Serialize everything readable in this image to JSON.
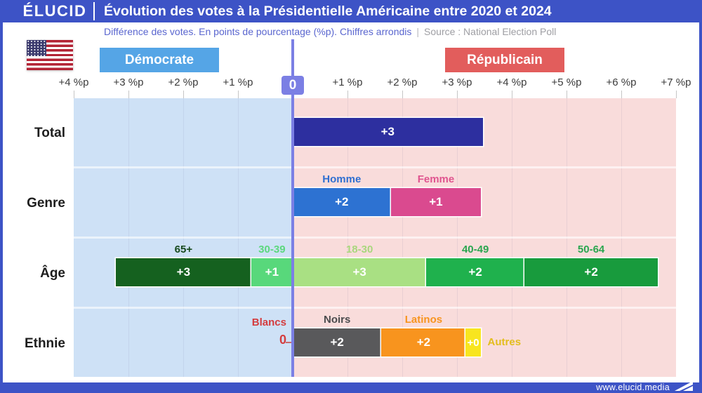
{
  "header": {
    "logo": "ÉLUCID",
    "title": "Évolution des votes à la Présidentielle Américaine entre 2020 et 2024"
  },
  "subtitle": {
    "text": "Différence des votes. En points de pourcentage (%p). Chiffres arrondis",
    "separator": "|",
    "source": "Source : National Election Poll"
  },
  "legend": {
    "democrat": "Démocrate",
    "republican": "Républicain"
  },
  "axis": {
    "zero": "0",
    "left_ticks": [
      "+4 %p",
      "+3 %p",
      "+2 %p",
      "+1 %p"
    ],
    "right_ticks": [
      "+1 %p",
      "+2 %p",
      "+3 %p",
      "+4 %p",
      "+5 %p",
      "+6 %p",
      "+7 %p"
    ]
  },
  "footer": {
    "url": "www.elucid.media"
  },
  "colors": {
    "frame_blue": "#3d53c6",
    "democrat_button": "#55a5e6",
    "republican_button": "#e25d5c",
    "democrat_bg": "#cee1f6",
    "republican_bg": "#f9dcdb",
    "zero_purple": "#7b7fe4",
    "blancs_dash": "#c8696c"
  },
  "chart_data": {
    "type": "bar",
    "orientation": "diverging-horizontal",
    "title": "Évolution des votes à la Présidentielle Américaine entre 2020 et 2024",
    "subtitle": "Différence des votes. En points de pourcentage (%p). Chiffres arrondis",
    "source": "National Election Poll",
    "unit": "%p",
    "sides": {
      "left": "Démocrate",
      "right": "Républicain"
    },
    "axis_range": {
      "democrat_max": 4,
      "republican_max": 7
    },
    "rows": [
      {
        "category": "Total",
        "segments": [
          {
            "label": "",
            "display": "+3",
            "value": 3,
            "extent": 3.47,
            "side": "rep",
            "color": "#2d2f9f",
            "label_color": "",
            "label_pos": "none"
          }
        ]
      },
      {
        "category": "Genre",
        "segments": [
          {
            "label": "Homme",
            "display": "+2",
            "value": 2,
            "extent": 1.79,
            "side": "rep",
            "color": "#2d72d2",
            "label_color": "#2f6fd1",
            "label_pos": "above"
          },
          {
            "label": "Femme",
            "display": "+1",
            "value": 1,
            "extent": 1.65,
            "side": "rep",
            "color": "#da4a8f",
            "label_color": "#e0548f",
            "label_pos": "above"
          }
        ]
      },
      {
        "category": "Âge",
        "segments": [
          {
            "label": "65+",
            "display": "+3",
            "value": 3,
            "extent": 2.47,
            "side": "dem",
            "color": "#15611f",
            "label_color": "#174a1d",
            "label_pos": "above"
          },
          {
            "label": "30-39",
            "display": "+1",
            "value": 1,
            "extent": 0.76,
            "side": "dem",
            "color": "#58d87b",
            "label_color": "#5cd87e",
            "label_pos": "above"
          },
          {
            "label": "18-30",
            "display": "+3",
            "value": 3,
            "extent": 2.44,
            "side": "rep",
            "color": "#a9e083",
            "label_color": "#a9d77d",
            "label_pos": "above"
          },
          {
            "label": "40-49",
            "display": "+2",
            "value": 2,
            "extent": 1.79,
            "side": "rep",
            "color": "#1fb14d",
            "label_color": "#2aa64f",
            "label_pos": "above"
          },
          {
            "label": "50-64",
            "display": "+2",
            "value": 2,
            "extent": 2.44,
            "side": "rep",
            "color": "#189b3d",
            "label_color": "#2aa64f",
            "label_pos": "above"
          }
        ]
      },
      {
        "category": "Ethnie",
        "segments": [
          {
            "label": "Blancs",
            "display": "0",
            "value": 0,
            "extent": 0,
            "side": "dem",
            "color": "",
            "label_color": "#d43c3e",
            "label_pos": "zero-left"
          },
          {
            "label": "Noirs",
            "display": "+2",
            "value": 2,
            "extent": 1.62,
            "side": "rep",
            "color": "#59595b",
            "label_color": "#4b4b4d",
            "label_pos": "above"
          },
          {
            "label": "Latinos",
            "display": "+2",
            "value": 2,
            "extent": 1.54,
            "side": "rep",
            "color": "#f8941e",
            "label_color": "#f8941e",
            "label_pos": "above"
          },
          {
            "label": "Autres",
            "display": "+0",
            "value": 0,
            "extent": 0.27,
            "side": "rep",
            "color": "#f8e51f",
            "label_color": "#e3bd1d",
            "label_pos": "right"
          }
        ]
      }
    ]
  }
}
